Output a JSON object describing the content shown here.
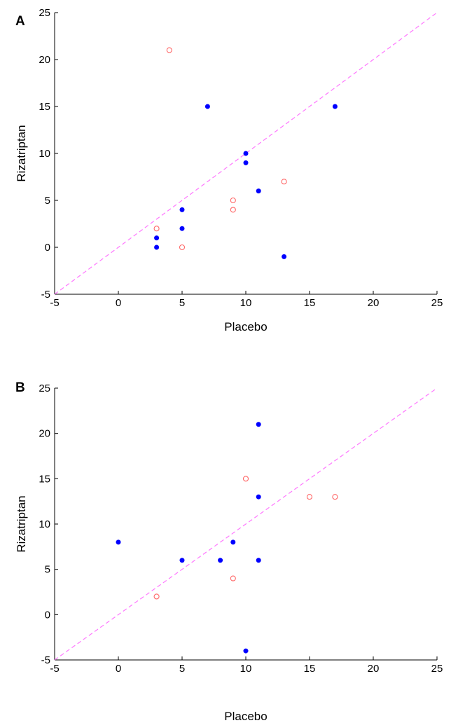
{
  "chart_data": [
    {
      "panel": "A",
      "type": "scatter",
      "xlabel": "Placebo",
      "ylabel": "Rizatriptan",
      "xlim": [
        -5,
        25
      ],
      "ylim": [
        -5,
        25
      ],
      "xticks": [
        -5,
        0,
        5,
        10,
        15,
        20,
        25
      ],
      "yticks": [
        -5,
        0,
        5,
        10,
        15,
        20,
        25
      ],
      "grid": false,
      "reference_line": {
        "style": "dashed",
        "color": "#ff77ff",
        "from": [
          -5,
          -5
        ],
        "to": [
          25,
          25
        ]
      },
      "series": [
        {
          "marker": "filled-circle",
          "color": "#0000ff",
          "points": [
            {
              "x": 7,
              "y": 15
            },
            {
              "x": 17,
              "y": 15
            },
            {
              "x": 10,
              "y": 10
            },
            {
              "x": 10,
              "y": 9
            },
            {
              "x": 11,
              "y": 6
            },
            {
              "x": 5,
              "y": 4
            },
            {
              "x": 5,
              "y": 2
            },
            {
              "x": 3,
              "y": 1
            },
            {
              "x": 3,
              "y": 0
            },
            {
              "x": 13,
              "y": -1
            }
          ]
        },
        {
          "marker": "open-circle",
          "color": "#ff6666",
          "points": [
            {
              "x": 4,
              "y": 21
            },
            {
              "x": 13,
              "y": 7
            },
            {
              "x": 9,
              "y": 5
            },
            {
              "x": 9,
              "y": 4
            },
            {
              "x": 3,
              "y": 2
            },
            {
              "x": 5,
              "y": 0
            }
          ]
        }
      ]
    },
    {
      "panel": "B",
      "type": "scatter",
      "xlabel": "Placebo",
      "ylabel": "Rizatriptan",
      "xlim": [
        -5,
        25
      ],
      "ylim": [
        -5,
        25
      ],
      "xticks": [
        -5,
        0,
        5,
        10,
        15,
        20,
        25
      ],
      "yticks": [
        -5,
        0,
        5,
        10,
        15,
        20,
        25
      ],
      "grid": false,
      "reference_line": {
        "style": "dashed",
        "color": "#ff77ff",
        "from": [
          -5,
          -5
        ],
        "to": [
          25,
          25
        ]
      },
      "series": [
        {
          "marker": "filled-circle",
          "color": "#0000ff",
          "points": [
            {
              "x": 11,
              "y": 21
            },
            {
              "x": 11,
              "y": 13
            },
            {
              "x": 9,
              "y": 8
            },
            {
              "x": 0,
              "y": 8
            },
            {
              "x": 5,
              "y": 6
            },
            {
              "x": 8,
              "y": 6
            },
            {
              "x": 11,
              "y": 6
            },
            {
              "x": 10,
              "y": -4
            }
          ]
        },
        {
          "marker": "open-circle",
          "color": "#ff6666",
          "points": [
            {
              "x": 10,
              "y": 15
            },
            {
              "x": 15,
              "y": 13
            },
            {
              "x": 17,
              "y": 13
            },
            {
              "x": 9,
              "y": 4
            },
            {
              "x": 3,
              "y": 2
            }
          ]
        }
      ]
    }
  ]
}
